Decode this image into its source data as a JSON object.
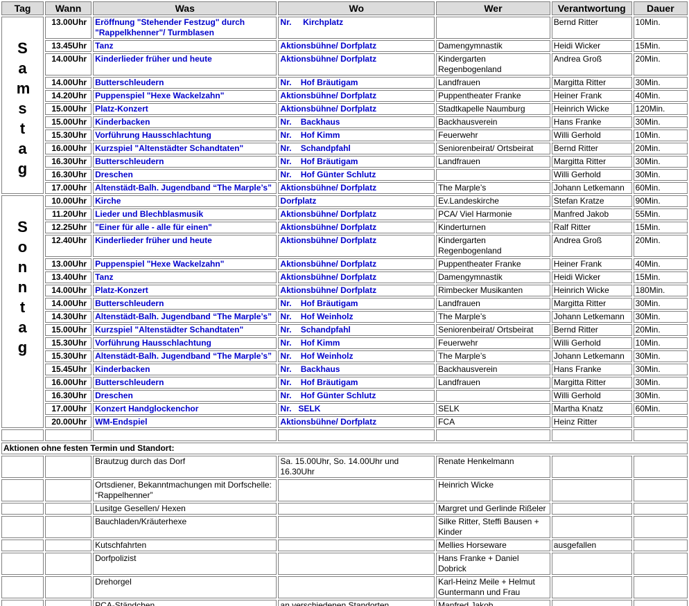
{
  "header": [
    "Tag",
    "Wann",
    "Was",
    "Wo",
    "Wer",
    "Verantwortung",
    "Dauer"
  ],
  "sections": [
    {
      "day": "Samstag",
      "rows": [
        {
          "time": "13.00Uhr",
          "what": "Eröffnung \"Stehender Festzug\" durch \"Rappelkhenner\"/   Turmblasen",
          "where": "Nr.     Kirchplatz",
          "who": null,
          "responsible": "Bernd Ritter",
          "duration": "10Min."
        },
        {
          "time": "13.45Uhr",
          "what": "Tanz",
          "where": "Aktionsbühne/ Dorfplatz",
          "who": "Damengymnastik",
          "responsible": "Heidi Wicker",
          "duration": "15Min."
        },
        {
          "time": "14.00Uhr",
          "what": "Kinderlieder früher und heute",
          "where": "Aktionsbühne/ Dorfplatz",
          "who": "Kindergarten Regenbogenland",
          "responsible": "Andrea Groß",
          "duration": "20Min."
        },
        {
          "time": "14.00Uhr",
          "what": "Butterschleudern",
          "where": "Nr.    Hof Bräutigam",
          "who": "Landfrauen",
          "responsible": "Margitta Ritter",
          "duration": "30Min."
        },
        {
          "time": "14.20Uhr",
          "what": "Puppenspiel \"Hexe Wackelzahn\"",
          "where": "Aktionsbühne/ Dorfplatz",
          "who": "Puppentheater Franke",
          "responsible": "Heiner Frank",
          "duration": "40Min."
        },
        {
          "time": "15.00Uhr",
          "what": "Platz-Konzert",
          "where": "Aktionsbühne/ Dorfplatz",
          "who": "Stadtkapelle Naumburg",
          "responsible": "Heinrich Wicke",
          "duration": "120Min."
        },
        {
          "time": "15.00Uhr",
          "what": "Kinderbacken",
          "where": "Nr.    Backhaus",
          "who": "Backhausverein",
          "responsible": "Hans Franke",
          "duration": "30Min."
        },
        {
          "time": "15.30Uhr",
          "what": "Vorführung Hausschlachtung",
          "where": "Nr.    Hof Kimm",
          "who": "Feuerwehr",
          "responsible": "Willi Gerhold",
          "duration": "10Min."
        },
        {
          "time": "16.00Uhr",
          "what": "Kurzspiel \"Altenstädter Schandtaten\"",
          "where": "Nr.    Schandpfahl",
          "who": "Seniorenbeirat/ Ortsbeirat",
          "responsible": "Bernd Ritter",
          "duration": "20Min."
        },
        {
          "time": "16.30Uhr",
          "what": "Butterschleudern",
          "where": "Nr.    Hof Bräutigam",
          "who": "Landfrauen",
          "responsible": "Margitta Ritter",
          "duration": "30Min."
        },
        {
          "time": "16.30Uhr",
          "what": "Dreschen",
          "where": "Nr.    Hof Günter Schlutz",
          "who": null,
          "responsible": "Willi Gerhold",
          "duration": "30Min."
        },
        {
          "time": "17.00Uhr",
          "what": "Altenstädt-Balh. Jugendband “The Marple’s”",
          "where": "Aktionsbühne/ Dorfplatz",
          "who": "The Marple’s",
          "responsible": "Johann Letkemann",
          "duration": "60Min."
        }
      ]
    },
    {
      "day": "Sonntag",
      "rows": [
        {
          "time": "10.00Uhr",
          "what": "Kirche",
          "where": "Dorfplatz",
          "who": "Ev.Landeskirche",
          "responsible": "Stefan Kratze",
          "duration": "90Min."
        },
        {
          "time": "11.20Uhr",
          "what": "Lieder und Blechblasmusik",
          "where": "Aktionsbühne/ Dorfplatz",
          "who": "PCA/ Viel Harmonie",
          "responsible": "Manfred Jakob",
          "duration": "55Min."
        },
        {
          "time": "12.25Uhr",
          "what": "\"Einer für alle - alle für einen\"",
          "where": "Aktionsbühne/ Dorfplatz",
          "who": "Kinderturnen",
          "responsible": "Ralf Ritter",
          "duration": "15Min."
        },
        {
          "time": "12.40Uhr",
          "what": "Kinderlieder früher und heute",
          "where": "Aktionsbühne/ Dorfplatz",
          "who": "Kindergarten Regenbogenland",
          "responsible": "Andrea Groß",
          "duration": "20Min."
        },
        {
          "time": "13.00Uhr",
          "what": "Puppenspiel \"Hexe Wackelzahn\"",
          "where": "Aktionsbühne/ Dorfplatz",
          "who": "Puppentheater Franke",
          "responsible": "Heiner Frank",
          "duration": "40Min."
        },
        {
          "time": "13.40Uhr",
          "what": "Tanz",
          "where": "Aktionsbühne/ Dorfplatz",
          "who": "Damengymnastik",
          "responsible": "Heidi Wicker",
          "duration": "15Min."
        },
        {
          "time": "14.00Uhr",
          "what": "Platz-Konzert",
          "where": "Aktionsbühne/ Dorfplatz",
          "who": "Rimbecker Musikanten",
          "responsible": "Heinrich Wicke",
          "duration": "180Min."
        },
        {
          "time": "14.00Uhr",
          "what": "Butterschleudern",
          "where": "Nr.    Hof Bräutigam",
          "who": "Landfrauen",
          "responsible": "Margitta Ritter",
          "duration": "30Min."
        },
        {
          "time": "14.30Uhr",
          "what": "Altenstädt-Balh. Jugendband “The Marple’s”",
          "where": "Nr.    Hof Weinholz",
          "who": "The Marple’s",
          "responsible": "Johann Letkemann",
          "duration": "30Min."
        },
        {
          "time": "15.00Uhr",
          "what": "Kurzspiel \"Altenstädter Schandtaten\"",
          "where": "Nr.    Schandpfahl",
          "who": "Seniorenbeirat/ Ortsbeirat",
          "responsible": "Bernd Ritter",
          "duration": "20Min."
        },
        {
          "time": "15.30Uhr",
          "what": "Vorführung Hausschlachtung",
          "where": "Nr.    Hof Kimm",
          "who": "Feuerwehr",
          "responsible": "Willi Gerhold",
          "duration": "10Min."
        },
        {
          "time": "15.30Uhr",
          "what": "Altenstädt-Balh. Jugendband “The Marple’s”",
          "where": "Nr.    Hof Weinholz",
          "who": "The Marple’s",
          "responsible": "Johann Letkemann",
          "duration": "30Min."
        },
        {
          "time": "15.45Uhr",
          "what": "Kinderbacken",
          "where": "Nr.    Backhaus",
          "who": "Backhausverein",
          "responsible": "Hans Franke",
          "duration": "30Min."
        },
        {
          "time": "16.00Uhr",
          "what": "Butterschleudern",
          "where": "Nr.    Hof Bräutigam",
          "who": "Landfrauen",
          "responsible": "Margitta Ritter",
          "duration": "30Min."
        },
        {
          "time": "16.30Uhr",
          "what": "Dreschen",
          "where": "Nr.    Hof Günter Schlutz",
          "who": null,
          "responsible": "Willi Gerhold",
          "duration": "30Min."
        },
        {
          "time": "17.00Uhr",
          "what": "Konzert Handglockenchor",
          "where": "Nr.   SELK",
          "who": "SELK",
          "responsible": "Martha Knatz",
          "duration": "60Min."
        },
        {
          "time": "20.00Uhr",
          "what": "WM-Endspiel",
          "where": "Aktionsbühne/ Dorfplatz",
          "who": "FCA",
          "responsible": "Heinz Ritter",
          "duration": null
        }
      ]
    }
  ],
  "extra": {
    "title": "Aktionen ohne festen Termin und Standort:",
    "rows": [
      {
        "what": "Brautzug durch das Dorf",
        "where": "Sa. 15.00Uhr, So. 14.00Uhr und 16.30Uhr",
        "who": "Renate Henkelmann",
        "responsible": null
      },
      {
        "what": "Ortsdiener, Bekanntmachungen mit Dorfschelle: “Rappelhenner”",
        "where": null,
        "who": "Heinrich Wicke",
        "responsible": null
      },
      {
        "what": "Lusitge Gesellen/ Hexen",
        "where": null,
        "who": "Margret und Gerlinde Rißeler",
        "responsible": null
      },
      {
        "what": "Bauchladen/Kräuterhexe",
        "where": null,
        "who": "Silke Ritter, Steffi Bausen + Kinder",
        "responsible": null
      },
      {
        "what": "Kutschfahrten",
        "where": null,
        "who": "Mellies Horseware",
        "responsible": "ausgefallen"
      },
      {
        "what": "Dorfpolizist",
        "where": null,
        "who": "Hans Franke + Daniel Dobrick",
        "responsible": null
      },
      {
        "what": "Drehorgel",
        "where": null,
        "who": "Karl-Heinz Meile + Helmut Guntermann und Frau",
        "responsible": null
      },
      {
        "what": "PCA-Ständchen",
        "where": "an verschiedenen Standorten",
        "who": "Manfred Jakob",
        "responsible": null
      }
    ]
  }
}
